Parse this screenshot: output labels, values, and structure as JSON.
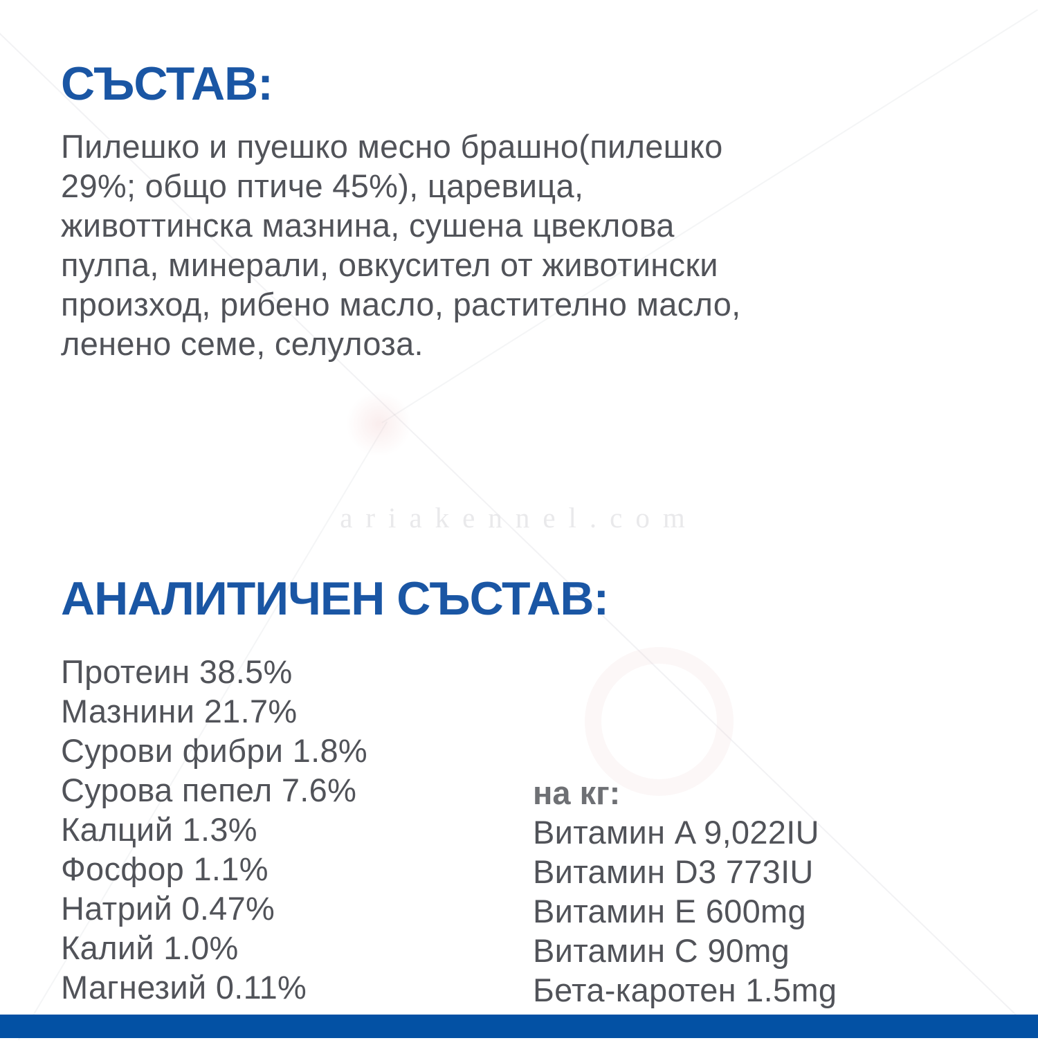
{
  "page": {
    "colors": {
      "heading_blue": "#1a56a4",
      "footer_bar_blue": "#0351a4",
      "body_text_gray": "#515359",
      "per_kg_gray": "#6e7074",
      "watermark_gray": "#e9e9eb",
      "background": "#ffffff"
    }
  },
  "composition": {
    "heading": "СЪСТАВ:",
    "lines": [
      "Пилешко и пуешко месно брашно(пилешко",
      "29%; общо птиче 45%), царевица,",
      "животтинска мазнина, сушена цвеклова",
      "пулпа, минерали, овкусител от животински",
      "произход, рибено масло, растително масло,",
      "ленено семе, селулоза."
    ]
  },
  "watermark": {
    "text": "ariakennel.com"
  },
  "analytical": {
    "heading": "АНАЛИТИЧЕН СЪСТАВ:",
    "nutrients": [
      "Протеин 38.5%",
      "Мазнини 21.7%",
      "Сурови фибри 1.8%",
      "Сурова пепел 7.6%",
      "Калций 1.3%",
      "Фосфор 1.1%",
      "Натрий 0.47%",
      "Калий 1.0%",
      "Магнезий 0.11%"
    ],
    "per_kg_label": "на кг:",
    "vitamins": [
      "Витамин A 9,022IU",
      "Витамин D3 773IU",
      "Витамин E 600mg",
      "Витамин C 90mg",
      "Бета-каротен 1.5mg"
    ]
  }
}
